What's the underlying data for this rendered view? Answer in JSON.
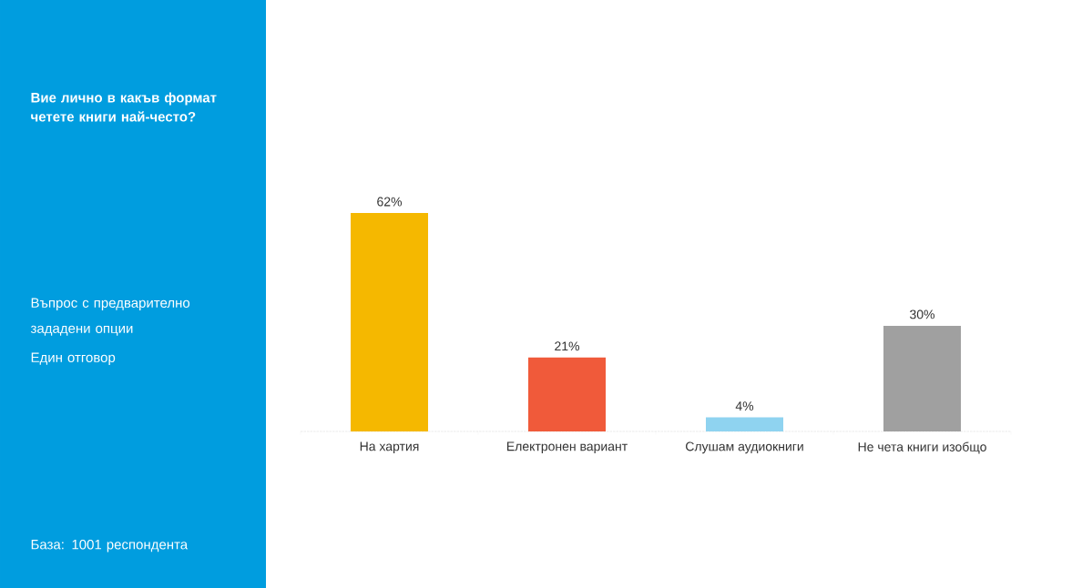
{
  "chart_data": {
    "type": "bar",
    "title": "Вие лично в какъв формат четете книги най-често?",
    "categories": [
      "На хартия",
      "Електронен вариант",
      "Слушам аудиокниги",
      "Не чета книги изобщо"
    ],
    "values": [
      62,
      21,
      4,
      30
    ],
    "value_labels": [
      "62%",
      "21%",
      "4%",
      "30%"
    ],
    "colors": [
      "#f5b800",
      "#f05a3a",
      "#8fd3f0",
      "#a0a0a0"
    ],
    "annotations": [
      "Въпрос с предварително зададени опции",
      "Един отговор",
      "База:  1001 респондента"
    ]
  }
}
